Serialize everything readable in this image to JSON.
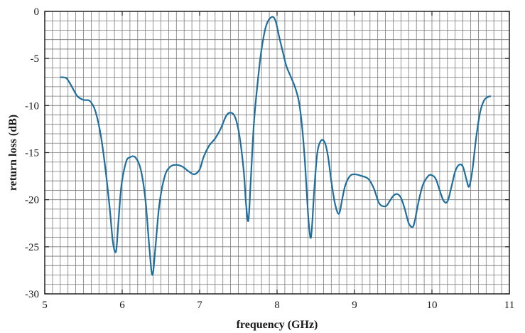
{
  "chart_data": {
    "type": "line",
    "title": "",
    "xlabel": "frequency (GHz)",
    "ylabel": "return loss (dB)",
    "xlim": [
      5,
      11
    ],
    "ylim": [
      -30,
      0
    ],
    "x_ticks": [
      "5",
      "6",
      "7",
      "8",
      "9",
      "10",
      "11"
    ],
    "y_ticks": [
      "0",
      "-5",
      "-10",
      "-15",
      "-20",
      "-25",
      "-30"
    ],
    "grid": true,
    "line_color": "#1f6f9e",
    "series": [
      {
        "x": [
          5.2,
          5.28,
          5.35,
          5.42,
          5.5,
          5.58,
          5.65,
          5.72,
          5.78,
          5.84,
          5.88,
          5.92,
          5.95,
          5.99,
          6.05,
          6.1,
          6.17,
          6.24,
          6.3,
          6.35,
          6.39,
          6.43,
          6.48,
          6.55,
          6.62,
          6.7,
          6.78,
          6.86,
          6.93,
          7.0,
          7.05,
          7.12,
          7.2,
          7.27,
          7.35,
          7.42,
          7.47,
          7.52,
          7.57,
          7.6,
          7.63,
          7.66,
          7.7,
          7.75,
          7.8,
          7.86,
          7.93,
          7.98,
          8.03,
          8.08,
          8.12,
          8.17,
          8.23,
          8.28,
          8.32,
          8.36,
          8.4,
          8.43,
          8.45,
          8.48,
          8.52,
          8.57,
          8.62,
          8.66,
          8.7,
          8.75,
          8.8,
          8.84,
          8.88,
          8.94,
          9.0,
          9.1,
          9.18,
          9.25,
          9.32,
          9.4,
          9.45,
          9.5,
          9.55,
          9.6,
          9.65,
          9.7,
          9.75,
          9.78,
          9.82,
          9.88,
          9.95,
          10.0,
          10.05,
          10.1,
          10.15,
          10.2,
          10.25,
          10.3,
          10.35,
          10.4,
          10.45,
          10.48,
          10.52,
          10.57,
          10.62,
          10.67,
          10.72,
          10.76
        ],
        "values": [
          -7.0,
          -7.1,
          -8.0,
          -9.0,
          -9.4,
          -9.5,
          -10.5,
          -13.0,
          -16.5,
          -21.0,
          -24.5,
          -25.5,
          -22.5,
          -18.5,
          -16.0,
          -15.5,
          -15.5,
          -16.8,
          -20.0,
          -25.0,
          -28.0,
          -25.0,
          -20.5,
          -17.5,
          -16.5,
          -16.3,
          -16.5,
          -17.0,
          -17.3,
          -16.8,
          -15.5,
          -14.3,
          -13.5,
          -12.5,
          -11.0,
          -10.8,
          -11.5,
          -13.5,
          -17.0,
          -20.5,
          -22.2,
          -18.0,
          -12.0,
          -7.5,
          -4.0,
          -1.5,
          -0.6,
          -1.0,
          -2.8,
          -4.5,
          -5.8,
          -6.8,
          -8.0,
          -9.5,
          -12.0,
          -16.0,
          -21.5,
          -24.0,
          -23.0,
          -19.0,
          -15.0,
          -13.7,
          -14.0,
          -15.5,
          -18.0,
          -20.5,
          -21.5,
          -20.0,
          -18.5,
          -17.5,
          -17.3,
          -17.5,
          -17.8,
          -18.8,
          -20.4,
          -20.7,
          -20.2,
          -19.6,
          -19.4,
          -19.8,
          -21.0,
          -22.5,
          -22.9,
          -22.2,
          -20.5,
          -18.5,
          -17.5,
          -17.4,
          -17.8,
          -19.0,
          -20.1,
          -20.2,
          -18.7,
          -17.0,
          -16.3,
          -16.5,
          -18.0,
          -18.6,
          -17.0,
          -13.5,
          -10.8,
          -9.5,
          -9.1,
          -9.0
        ]
      }
    ]
  }
}
